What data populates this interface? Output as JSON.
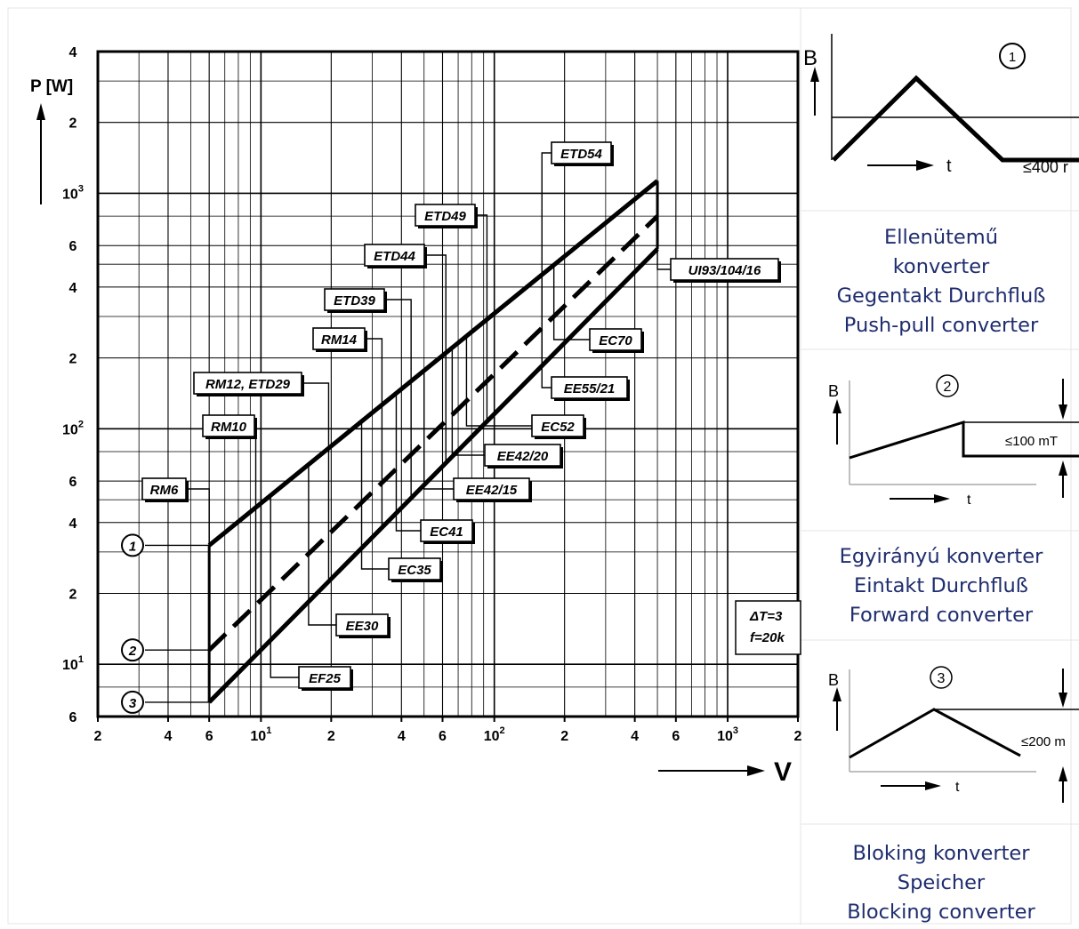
{
  "chart_data": {
    "type": "line",
    "scale": "log-log",
    "xlabel": "V",
    "ylabel": "P [W]",
    "xlim": [
      2,
      2000
    ],
    "ylim": [
      6,
      4000
    ],
    "x_ticks": [
      {
        "v": 2,
        "t": "2"
      },
      {
        "v": 4,
        "t": "4"
      },
      {
        "v": 6,
        "t": "6"
      },
      {
        "v": 10,
        "t": "10¹"
      },
      {
        "v": 20,
        "t": "2"
      },
      {
        "v": 40,
        "t": "4"
      },
      {
        "v": 60,
        "t": "6"
      },
      {
        "v": 100,
        "t": "10²"
      },
      {
        "v": 200,
        "t": "2"
      },
      {
        "v": 400,
        "t": "4"
      },
      {
        "v": 600,
        "t": "6"
      },
      {
        "v": 1000,
        "t": "10³"
      },
      {
        "v": 2000,
        "t": "2"
      }
    ],
    "y_ticks": [
      {
        "v": 6,
        "t": "6"
      },
      {
        "v": 10,
        "t": "10¹"
      },
      {
        "v": 20,
        "t": "2"
      },
      {
        "v": 40,
        "t": "4"
      },
      {
        "v": 60,
        "t": "6"
      },
      {
        "v": 100,
        "t": "10²"
      },
      {
        "v": 200,
        "t": "2"
      },
      {
        "v": 400,
        "t": "4"
      },
      {
        "v": 600,
        "t": "6"
      },
      {
        "v": 1000,
        "t": "10³"
      },
      {
        "v": 2000,
        "t": "2"
      },
      {
        "v": 4000,
        "t": "4"
      }
    ],
    "series": [
      {
        "name": "1",
        "style": "solid",
        "x": [
          6,
          500
        ],
        "y": [
          32,
          1130
        ]
      },
      {
        "name": "2",
        "style": "dashed",
        "x": [
          6,
          500
        ],
        "y": [
          11.5,
          800
        ]
      },
      {
        "name": "3",
        "style": "solid",
        "x": [
          6,
          500
        ],
        "y": [
          6.9,
          580
        ]
      }
    ],
    "cores": [
      {
        "name": "RM6",
        "x": 6,
        "side": "up"
      },
      {
        "name": "RM10",
        "x": 9.5,
        "side": "up"
      },
      {
        "name": "RM12, ETD29",
        "x": 19.5,
        "side": "up"
      },
      {
        "name": "RM14",
        "x": 33,
        "side": "up"
      },
      {
        "name": "ETD39",
        "x": 44,
        "side": "up"
      },
      {
        "name": "ETD44",
        "x": 62,
        "side": "up"
      },
      {
        "name": "ETD49",
        "x": 93,
        "side": "up"
      },
      {
        "name": "ETD54",
        "x": 160,
        "side": "up"
      },
      {
        "name": "UI93/104/16",
        "x": 500,
        "side": "right"
      },
      {
        "name": "EC70",
        "x": 180,
        "side": "down"
      },
      {
        "name": "EE55/21",
        "x": 160,
        "side": "down"
      },
      {
        "name": "EC52",
        "x": 76,
        "side": "down"
      },
      {
        "name": "EE42/20",
        "x": 66,
        "side": "down"
      },
      {
        "name": "EE42/15",
        "x": 50,
        "side": "down"
      },
      {
        "name": "EC41",
        "x": 38,
        "side": "down"
      },
      {
        "name": "EC35",
        "x": 27,
        "side": "down"
      },
      {
        "name": "EE30",
        "x": 16,
        "side": "down"
      },
      {
        "name": "EF25",
        "x": 11,
        "side": "down"
      }
    ],
    "annotation": [
      "ΔT=3",
      "f=20k"
    ],
    "grid": true,
    "legend": "circled numbers at left"
  },
  "panels": [
    {
      "number": "1",
      "axis_b": "B",
      "axis_t": "t",
      "limit": "≤400 r",
      "caption": [
        "Ellenütemű",
        "konverter",
        "Gegentakt Durchfluß",
        "Push-pull converter"
      ]
    },
    {
      "number": "2",
      "axis_b": "B",
      "axis_t": "t",
      "limit": "≤100 mT",
      "caption": [
        "Egyirányú konverter",
        "Eintakt Durchfluß",
        "Forward converter"
      ]
    },
    {
      "number": "3",
      "axis_b": "B",
      "axis_t": "t",
      "limit": "≤200 m",
      "caption": [
        "Bloking konverter",
        "Speicher",
        "Blocking converter"
      ]
    }
  ],
  "colors": {
    "caption": "#1f2d6e",
    "ink": "#000000",
    "border": "#e0e0e0"
  }
}
